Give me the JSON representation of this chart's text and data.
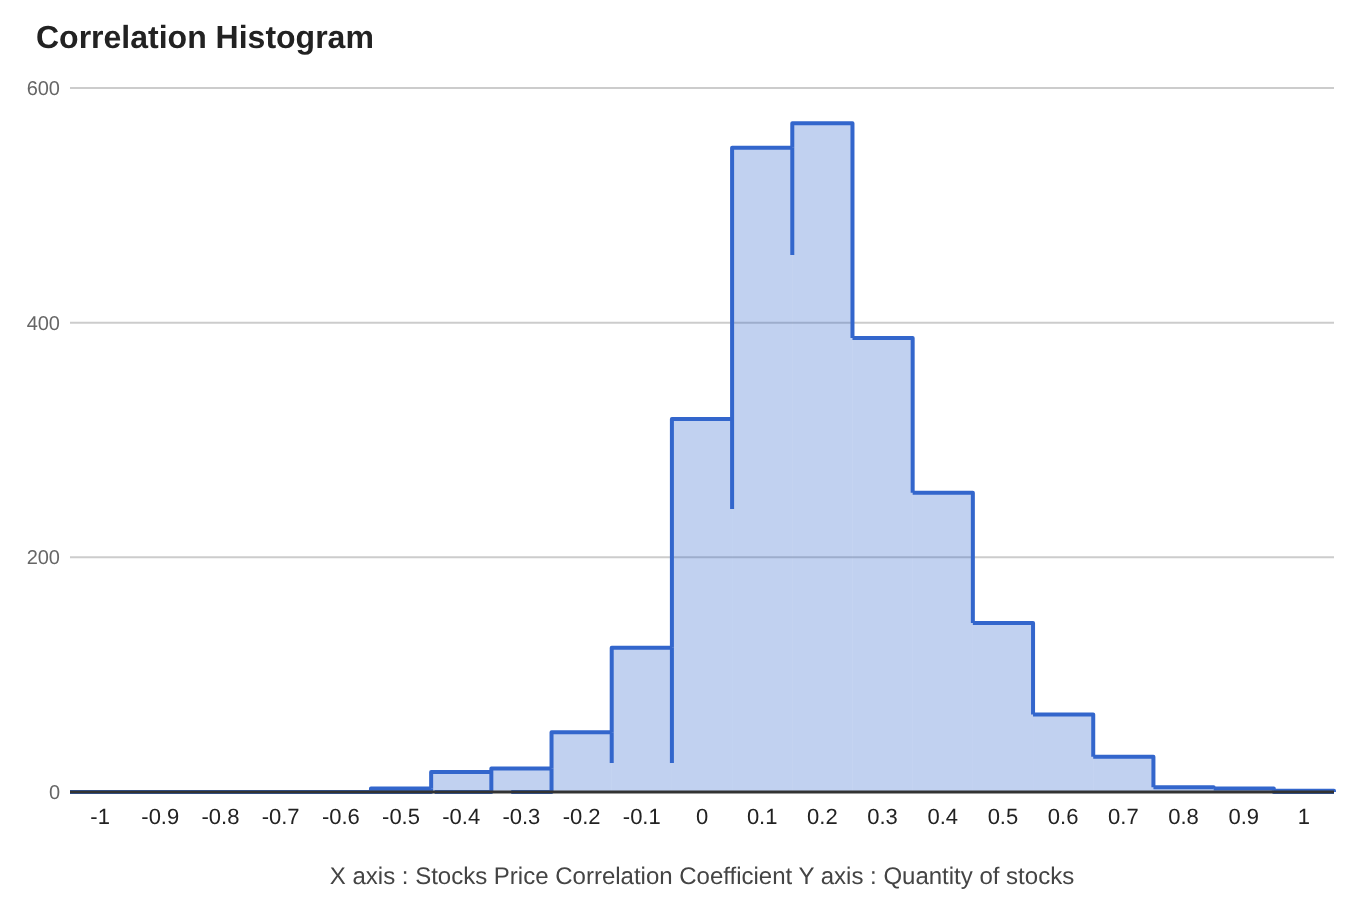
{
  "chart_data": {
    "type": "histogram",
    "title": "Correlation Histogram",
    "xlabel": "X axis : Stocks Price Correlation Coefficient  Y axis : Quantity of stocks",
    "bins": [
      -1.05,
      -0.95,
      -0.85,
      -0.75,
      -0.65,
      -0.55,
      -0.45,
      -0.35,
      -0.25,
      -0.15,
      -0.05,
      0.05,
      0.15,
      0.25,
      0.35,
      0.45,
      0.55,
      0.65,
      0.75,
      0.85,
      0.95,
      1.05
    ],
    "values": [
      0,
      0,
      0,
      0,
      0,
      3,
      17,
      20,
      51,
      123,
      318,
      549,
      570,
      387,
      255,
      144,
      66,
      30,
      4,
      3,
      1
    ],
    "color": "#3366cc",
    "xlim": [
      -1.05,
      1.05
    ],
    "xticks": [
      -1,
      -0.9,
      -0.8,
      -0.7,
      -0.6,
      -0.5,
      -0.4,
      -0.3,
      -0.2,
      -0.1,
      0,
      0.1,
      0.2,
      0.3,
      0.4,
      0.5,
      0.6,
      0.7,
      0.8,
      0.9,
      1
    ],
    "ylim": [
      0,
      600
    ],
    "yticks": [
      0,
      200,
      400,
      600
    ],
    "grid": "y"
  }
}
